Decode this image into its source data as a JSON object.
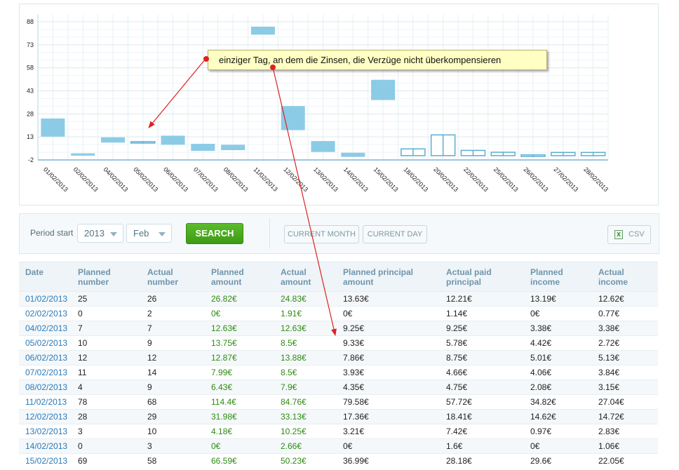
{
  "chart_data": {
    "type": "candlestick",
    "ylim": [
      -2,
      88
    ],
    "y_ticks": [
      "88",
      "73",
      "58",
      "43",
      "28",
      "13",
      "-2"
    ],
    "categories": [
      "01/02/2013",
      "02/02/2013",
      "04/02/2013",
      "05/02/2013",
      "06/02/2013",
      "07/02/2013",
      "08/02/2013",
      "11/02/2013",
      "12/02/2013",
      "13/02/2013",
      "14/02/2013",
      "15/02/2013",
      "18/02/2013",
      "20/02/2013",
      "22/02/2013",
      "25/02/2013",
      "26/02/2013",
      "27/02/2013",
      "28/02/2013"
    ],
    "series": [
      {
        "values": [
          {
            "low": 13.2,
            "high": 25.0,
            "filled": true
          },
          {
            "low": 0.8,
            "high": 2.3,
            "filled": true
          },
          {
            "low": 9.3,
            "high": 12.7,
            "filled": true
          },
          {
            "low": 9.3,
            "high": 9.9,
            "filled": false
          },
          {
            "low": 7.9,
            "high": 13.8,
            "filled": true
          },
          {
            "low": 3.9,
            "high": 8.5,
            "filled": true
          },
          {
            "low": 4.4,
            "high": 7.9,
            "filled": true
          },
          {
            "low": 79.6,
            "high": 84.8,
            "filled": true
          },
          {
            "low": 17.4,
            "high": 33.1,
            "filled": true
          },
          {
            "low": 3.2,
            "high": 10.3,
            "filled": true
          },
          {
            "low": 0.0,
            "high": 2.7,
            "filled": true
          },
          {
            "low": 37.0,
            "high": 50.2,
            "filled": true
          },
          {
            "low": 0.8,
            "high": 5.2,
            "filled": false
          },
          {
            "low": 0.8,
            "high": 14.3,
            "filled": false
          },
          {
            "low": 0.8,
            "high": 4.2,
            "filled": false
          },
          {
            "low": 0.8,
            "high": 3.0,
            "filled": false
          },
          {
            "low": 0.3,
            "high": 1.3,
            "filled": false
          },
          {
            "low": 0.8,
            "high": 2.9,
            "filled": false
          },
          {
            "low": 0.8,
            "high": 2.9,
            "filled": false
          }
        ]
      }
    ],
    "grid": true,
    "fill_color": "#8ccbe6",
    "hollow_stroke": "#5aaed3"
  },
  "annotation": {
    "text": "einziger Tag, an dem die Zinsen, die Verzüge nicht überkompensieren",
    "arrow_color": "#e02020"
  },
  "toolbar": {
    "period_label": "Period start",
    "year_value": "2013",
    "month_value": "Feb",
    "search_label": "SEARCH",
    "current_month_label": "CURRENT MONTH",
    "current_day_label": "CURRENT DAY",
    "csv_label": "CSV",
    "csv_icon": "excel-icon"
  },
  "table": {
    "headers": [
      "Date",
      "Planned\nnumber",
      "Actual\nnumber",
      "Planned\namount",
      "Actual\namount",
      "Planned principal\namount",
      "Actual paid\nprincipal",
      "Planned\nincome",
      "Actual\nincome"
    ],
    "rows": [
      [
        "01/02/2013",
        "25",
        "26",
        "26.82€",
        "24.83€",
        "13.63€",
        "12.21€",
        "13.19€",
        "12.62€"
      ],
      [
        "02/02/2013",
        "0",
        "2",
        "0€",
        "1.91€",
        "0€",
        "1.14€",
        "0€",
        "0.77€"
      ],
      [
        "04/02/2013",
        "7",
        "7",
        "12.63€",
        "12.63€",
        "9.25€",
        "9.25€",
        "3.38€",
        "3.38€"
      ],
      [
        "05/02/2013",
        "10",
        "9",
        "13.75€",
        "8.5€",
        "9.33€",
        "5.78€",
        "4.42€",
        "2.72€"
      ],
      [
        "06/02/2013",
        "12",
        "12",
        "12.87€",
        "13.88€",
        "7.86€",
        "8.75€",
        "5.01€",
        "5.13€"
      ],
      [
        "07/02/2013",
        "11",
        "14",
        "7.99€",
        "8.5€",
        "3.93€",
        "4.66€",
        "4.06€",
        "3.84€"
      ],
      [
        "08/02/2013",
        "4",
        "9",
        "6.43€",
        "7.9€",
        "4.35€",
        "4.75€",
        "2.08€",
        "3.15€"
      ],
      [
        "11/02/2013",
        "78",
        "68",
        "114.4€",
        "84.76€",
        "79.58€",
        "57.72€",
        "34.82€",
        "27.04€"
      ],
      [
        "12/02/2013",
        "28",
        "29",
        "31.98€",
        "33.13€",
        "17.36€",
        "18.41€",
        "14.62€",
        "14.72€"
      ],
      [
        "13/02/2013",
        "3",
        "10",
        "4.18€",
        "10.25€",
        "3.21€",
        "7.42€",
        "0.97€",
        "2.83€"
      ],
      [
        "14/02/2013",
        "0",
        "3",
        "0€",
        "2.66€",
        "0€",
        "1.6€",
        "0€",
        "1.06€"
      ],
      [
        "15/02/2013",
        "69",
        "58",
        "66.59€",
        "50.23€",
        "36.99€",
        "28.18€",
        "29.6€",
        "22.05€"
      ]
    ]
  }
}
